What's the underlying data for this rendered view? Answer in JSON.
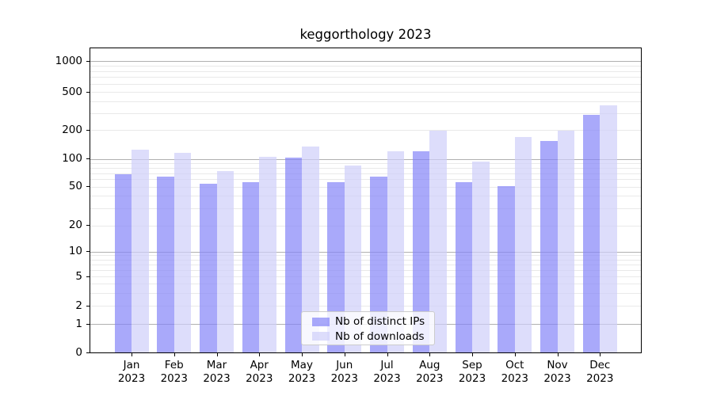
{
  "page": {
    "background": "#ffffff"
  },
  "chart_data": {
    "type": "bar",
    "title": "keggorthology 2023",
    "categories": [
      "Jan",
      "Feb",
      "Mar",
      "Apr",
      "May",
      "Jun",
      "Jul",
      "Aug",
      "Sep",
      "Oct",
      "Nov",
      "Dec"
    ],
    "category_year_line": "2023",
    "series": [
      {
        "name": "Nb of distinct IPs",
        "color": "#aaaaf7",
        "fill": "rgba(133,133,248,0.7)",
        "values": [
          68,
          64,
          54,
          56,
          102,
          56,
          64,
          120,
          56,
          51,
          152,
          290
        ]
      },
      {
        "name": "Nb of downloads",
        "color": "#dcdcfa",
        "fill": "rgba(206,206,250,0.7)",
        "values": [
          124,
          115,
          73,
          105,
          134,
          85,
          120,
          195,
          93,
          170,
          197,
          362
        ]
      }
    ],
    "xlabel": "",
    "ylabel": "",
    "yscale": "symlog",
    "yticks": [
      0,
      1,
      2,
      5,
      10,
      20,
      50,
      100,
      200,
      500,
      1000
    ],
    "ylim": [
      0,
      1350
    ],
    "grid": true,
    "grid_major_color": "#b0b0b0",
    "grid_minor_color": "#e9e9e9",
    "legend_position": "lower center"
  }
}
